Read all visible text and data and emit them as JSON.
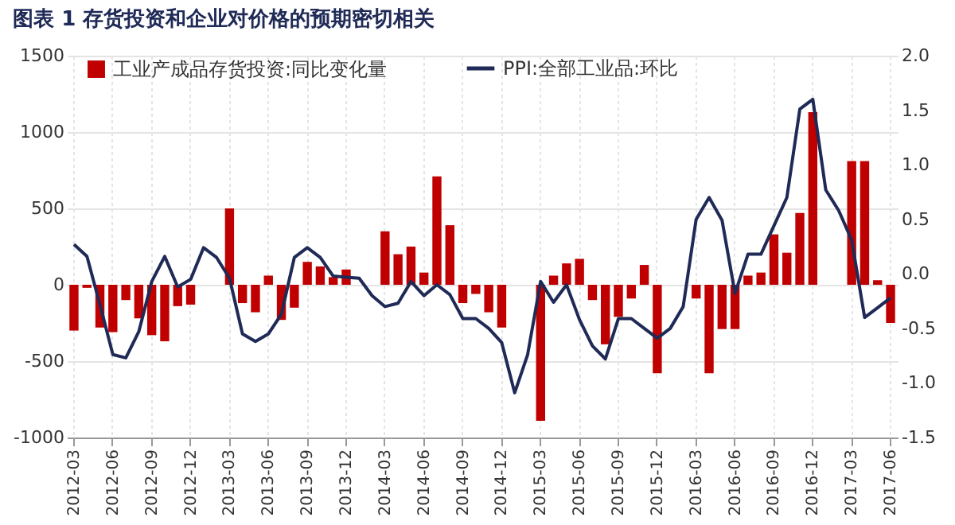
{
  "chart_data": {
    "type": "bar",
    "title": "图表 1    存货投资和企业对价格的预期密切相关",
    "categories": [
      "2012-03",
      null,
      null,
      "2012-06",
      null,
      null,
      "2012-09",
      null,
      null,
      "2012-12",
      null,
      null,
      "2013-03",
      null,
      null,
      "2013-06",
      null,
      null,
      "2013-09",
      null,
      null,
      "2013-12",
      null,
      null,
      "2014-03",
      null,
      null,
      "2014-06",
      null,
      null,
      "2014-09",
      null,
      null,
      "2014-12",
      null,
      null,
      "2015-03",
      null,
      null,
      "2015-06",
      null,
      null,
      "2015-09",
      null,
      null,
      "2015-12",
      null,
      null,
      "2016-03",
      null,
      null,
      "2016-06",
      null,
      null,
      "2016-09",
      null,
      null,
      "2016-12",
      null,
      null,
      "2017-03",
      null,
      null,
      "2017-06"
    ],
    "series": [
      {
        "name": "工业产成品存货投资:同比变化量",
        "color": "#c00000",
        "values": [
          -300,
          -20,
          -280,
          -310,
          -100,
          -220,
          -330,
          -370,
          -140,
          -130,
          null,
          null,
          500,
          -120,
          -180,
          60,
          -230,
          -150,
          150,
          120,
          50,
          100,
          null,
          null,
          350,
          200,
          250,
          80,
          710,
          390,
          -120,
          -60,
          -180,
          -280,
          null,
          null,
          -890,
          60,
          140,
          170,
          -100,
          -390,
          -210,
          -90,
          130,
          -580,
          null,
          null,
          -90,
          -580,
          -290,
          -290,
          60,
          80,
          330,
          210,
          470,
          1130,
          null,
          null,
          810,
          810,
          30,
          -250
        ]
      },
      {
        "name": "PPI:全部工业品:环比",
        "type": "line",
        "axis": "y2",
        "color": "#1f2a56",
        "values": [
          0.27,
          0.16,
          -0.28,
          -0.74,
          -0.77,
          -0.53,
          -0.07,
          0.16,
          -0.12,
          -0.05,
          0.24,
          0.15,
          -0.04,
          -0.55,
          -0.62,
          -0.55,
          -0.37,
          0.15,
          0.24,
          0.15,
          -0.02,
          -0.03,
          -0.04,
          -0.2,
          -0.3,
          -0.27,
          -0.07,
          -0.2,
          -0.1,
          -0.19,
          -0.41,
          -0.41,
          -0.5,
          -0.63,
          -1.09,
          -0.74,
          -0.07,
          -0.26,
          -0.1,
          -0.42,
          -0.66,
          -0.78,
          -0.41,
          -0.41,
          -0.5,
          -0.59,
          -0.5,
          -0.3,
          0.5,
          0.7,
          0.49,
          -0.18,
          0.18,
          0.18,
          0.44,
          0.7,
          1.51,
          1.6,
          0.77,
          0.58,
          0.31,
          -0.4,
          -0.31,
          -0.22
        ]
      }
    ],
    "ylim": [
      -1000,
      1500
    ],
    "yticks": [
      -1000,
      -500,
      0,
      500,
      1000,
      1500
    ],
    "y2lim": [
      -1.5,
      2.0
    ],
    "y2ticks": [
      {
        "value": -1.5,
        "label": "-1.5"
      },
      {
        "value": -1,
        "label": "-1.0"
      },
      {
        "value": -0.5,
        "label": "-0.5"
      },
      {
        "value": 0,
        "label": "0.0"
      },
      {
        "value": 0.5,
        "label": "0.5"
      },
      {
        "value": 1,
        "label": "1.0"
      },
      {
        "value": 1.5,
        "label": "1.5"
      },
      {
        "value": 2,
        "label": "2.0"
      }
    ],
    "grid": true,
    "legend": "top"
  }
}
